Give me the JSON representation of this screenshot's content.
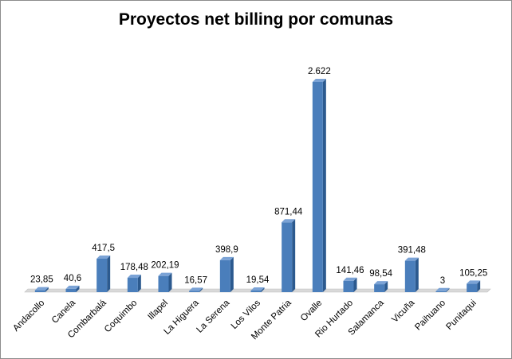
{
  "chart_data": {
    "type": "bar",
    "title": "Proyectos net billing por comunas",
    "categories": [
      "Andacollo",
      "Canela",
      "Combarbalá",
      "Coquimbo",
      "Illapel",
      "La Higuera",
      "La Serena",
      "Los Vilos",
      "Monte Patria",
      "Ovalle",
      "Rio Hurtado",
      "Salamanca",
      "Vicuña",
      "Paihuano",
      "Punitaqui"
    ],
    "values": [
      23.85,
      40.6,
      417.5,
      178.48,
      202.19,
      16.57,
      398.9,
      19.54,
      871.44,
      2622,
      141.46,
      98.54,
      391.48,
      3,
      105.25
    ],
    "data_labels": [
      "23,85",
      "40,6",
      "417,5",
      "178,48",
      "202,19",
      "16,57",
      "398,9",
      "19,54",
      "871,44",
      "2.622",
      "141,46",
      "98,54",
      "391,48",
      "3",
      "105,25"
    ],
    "xlabel": "",
    "ylabel": "",
    "ylim": [
      0,
      2622
    ],
    "grid": false,
    "legend": "none",
    "colors": {
      "bar_front": "#4a7ebb",
      "bar_side": "#2c5a8f",
      "bar_top": "#7ba3d6",
      "floor": "#d9d9d9"
    }
  }
}
